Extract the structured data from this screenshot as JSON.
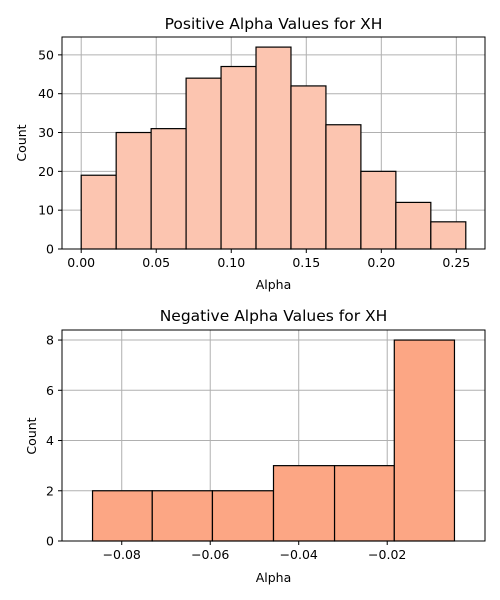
{
  "chart_data": [
    {
      "type": "bar",
      "title": "Positive Alpha Values for XH",
      "xlabel": "Alpha",
      "ylabel": "Count",
      "color": "#fcc5b0",
      "bins": [
        {
          "x0": 0.0,
          "x1": 0.0233,
          "count": 19
        },
        {
          "x0": 0.0233,
          "x1": 0.0466,
          "count": 30
        },
        {
          "x0": 0.0466,
          "x1": 0.0699,
          "count": 31
        },
        {
          "x0": 0.0699,
          "x1": 0.0932,
          "count": 44
        },
        {
          "x0": 0.0932,
          "x1": 0.1165,
          "count": 47
        },
        {
          "x0": 0.1165,
          "x1": 0.1398,
          "count": 52
        },
        {
          "x0": 0.1398,
          "x1": 0.1631,
          "count": 42
        },
        {
          "x0": 0.1631,
          "x1": 0.1864,
          "count": 32
        },
        {
          "x0": 0.1864,
          "x1": 0.2097,
          "count": 20
        },
        {
          "x0": 0.2097,
          "x1": 0.233,
          "count": 12
        },
        {
          "x0": 0.233,
          "x1": 0.2563,
          "count": 7
        }
      ],
      "xlim": [
        -0.0128,
        0.2691
      ],
      "ylim": [
        0,
        54.6
      ],
      "xticks": [
        0.0,
        0.05,
        0.1,
        0.15,
        0.2,
        0.25
      ],
      "xtick_labels": [
        "0.00",
        "0.05",
        "0.10",
        "0.15",
        "0.20",
        "0.25"
      ],
      "yticks": [
        0,
        10,
        20,
        30,
        40,
        50
      ],
      "ytick_labels": [
        "0",
        "10",
        "20",
        "30",
        "40",
        "50"
      ],
      "grid": true
    },
    {
      "type": "bar",
      "title": "Negative Alpha Values for XH",
      "xlabel": "Alpha",
      "ylabel": "Count",
      "color": "#fca684",
      "bins": [
        {
          "x0": -0.0866,
          "x1": -0.0731,
          "count": 2
        },
        {
          "x0": -0.0731,
          "x1": -0.0595,
          "count": 2
        },
        {
          "x0": -0.0595,
          "x1": -0.0457,
          "count": 2
        },
        {
          "x0": -0.0457,
          "x1": -0.0319,
          "count": 3
        },
        {
          "x0": -0.0319,
          "x1": -0.0184,
          "count": 3
        },
        {
          "x0": -0.0184,
          "x1": -0.0048,
          "count": 8
        }
      ],
      "xlim": [
        -0.0935,
        0.0021
      ],
      "ylim": [
        0,
        8.4
      ],
      "xticks": [
        -0.08,
        -0.06,
        -0.04,
        -0.02
      ],
      "xtick_labels": [
        "−0.08",
        "−0.06",
        "−0.04",
        "−0.02"
      ],
      "yticks": [
        0,
        2,
        4,
        6,
        8
      ],
      "ytick_labels": [
        "0",
        "2",
        "4",
        "6",
        "8"
      ],
      "grid": true
    }
  ]
}
